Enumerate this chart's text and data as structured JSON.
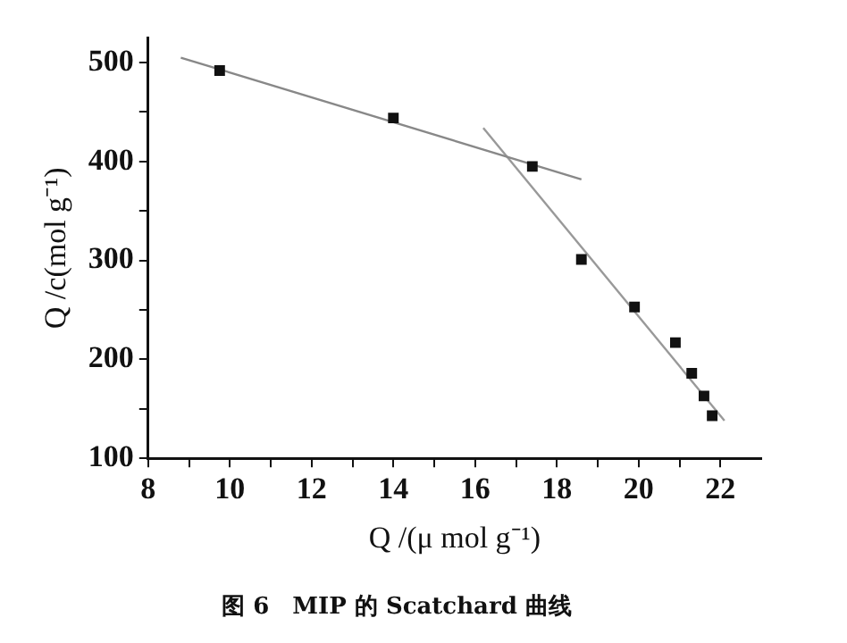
{
  "chart_data": {
    "type": "scatter",
    "title": "图 6　MIP 的 Scatchard 曲线",
    "xlabel": "Q /(μ mol g⁻¹)",
    "ylabel": "Q /c(mol g⁻¹)",
    "xlim": [
      8,
      23
    ],
    "ylim": [
      100,
      525
    ],
    "xticks": [
      8,
      {
        "value": 9,
        "label": null
      },
      10,
      {
        "value": 11,
        "label": null
      },
      12,
      {
        "value": 13,
        "label": null
      },
      14,
      {
        "value": 15,
        "label": null
      },
      16,
      {
        "value": 17,
        "label": null
      },
      18,
      {
        "value": 19,
        "label": null
      },
      20,
      {
        "value": 21,
        "label": null
      },
      22
    ],
    "yticks": [
      100,
      {
        "value": 150,
        "label": null
      },
      200,
      {
        "value": 250,
        "label": null
      },
      300,
      {
        "value": 350,
        "label": null
      },
      400,
      {
        "value": 450,
        "label": null
      },
      500
    ],
    "grid": false,
    "legend": false,
    "marker": "square",
    "series": [
      {
        "type": "scatter",
        "color": "#111111",
        "x": [
          9.75,
          14,
          17.4,
          18.6,
          19.9,
          20.9,
          21.3,
          21.6,
          21.8
        ],
        "values": [
          492,
          444,
          395,
          301,
          253,
          217,
          186,
          163,
          143
        ]
      },
      {
        "type": "line",
        "color": "#888888",
        "marker": "none",
        "x": [
          8.8,
          18.6
        ],
        "values": [
          505,
          382
        ]
      },
      {
        "type": "line",
        "color": "#999999",
        "marker": "none",
        "x": [
          16.2,
          22.1
        ],
        "values": [
          434,
          138
        ]
      }
    ]
  }
}
